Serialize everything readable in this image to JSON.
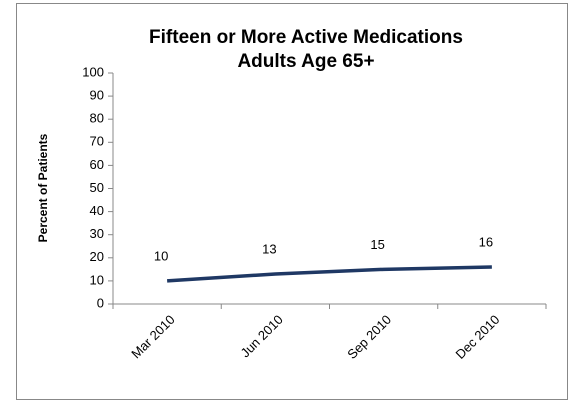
{
  "chart_data": {
    "type": "line",
    "title": "Fifteen or More Active Medications",
    "subtitle": "Adults Age 65+",
    "y_label": "Percent of Patients",
    "categories": [
      "Mar 2010",
      "Jun 2010",
      "Sep 2010",
      "Dec 2010"
    ],
    "values": [
      10,
      13,
      15,
      16
    ],
    "color": "#1f3864",
    "ylim": [
      0,
      100
    ],
    "yticks": [
      0,
      10,
      20,
      30,
      40,
      50,
      60,
      70,
      80,
      90,
      100
    ],
    "data_labels": true
  }
}
